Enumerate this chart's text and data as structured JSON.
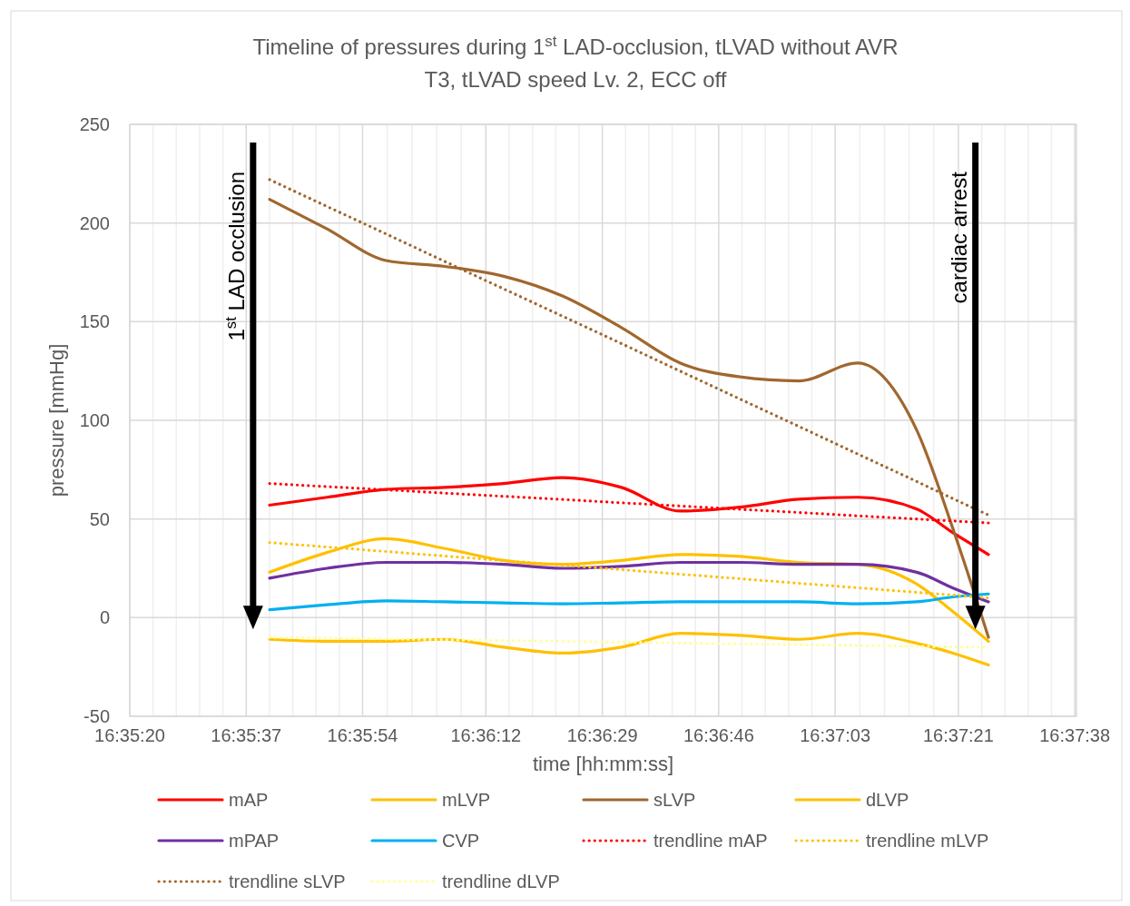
{
  "chart_data": {
    "type": "line",
    "title": "Timeline of pressures during 1$^{st}$ LAD-occlusion, tLVAD without AVR",
    "subtitle": "T3, tLVAD speed Lv. 2, ECC off",
    "xlabel": "time [hh:mm:ss]",
    "ylabel": "pressure [mmHg]",
    "x": [
      16.59456,
      16.59689,
      16.59928,
      16.60167,
      16.60406,
      16.60644,
      16.60883,
      16.61122,
      16.61364,
      16.61603,
      16.61842,
      16.62081,
      16.62228,
      16.62372
    ],
    "series": [
      {
        "name": "mAP",
        "color": "#ff0000",
        "values": [
          57,
          61,
          65,
          66,
          68,
          71,
          66,
          54,
          56,
          60,
          61,
          55,
          43,
          32
        ]
      },
      {
        "name": "mLVP",
        "color": "#ffc000",
        "values": [
          23,
          33,
          40,
          35,
          29,
          27,
          29,
          32,
          31,
          28,
          27,
          17,
          3,
          -12
        ]
      },
      {
        "name": "sLVP",
        "color": "#a0672e",
        "values": [
          212,
          197,
          181,
          178,
          173,
          163,
          147,
          129,
          122,
          120,
          129,
          95,
          45,
          -10
        ]
      },
      {
        "name": "dLVP",
        "color": "#ffc000",
        "values": [
          -11,
          -12,
          -12,
          -11,
          -15,
          -18,
          -15,
          -8,
          -9,
          -11,
          -8,
          -13,
          -18,
          -24
        ]
      },
      {
        "name": "mPAP",
        "color": "#7030a0",
        "values": [
          20,
          25,
          28,
          28,
          27,
          25,
          26,
          28,
          28,
          27,
          27,
          23,
          15,
          8
        ]
      },
      {
        "name": "CVP",
        "color": "#00b0f0",
        "values": [
          4,
          6.5,
          8.5,
          8,
          7.5,
          7,
          7.5,
          8,
          8,
          8,
          7,
          8,
          10.5,
          12
        ]
      },
      {
        "name": "trendline mAP",
        "type": "line",
        "color": "#ff0000",
        "line_style": "dotted",
        "values": [
          68,
          66.4,
          64.8,
          63.1,
          61.5,
          59.9,
          58.2,
          56.6,
          54.9,
          53.3,
          51.6,
          50,
          49,
          48
        ]
      },
      {
        "name": "trendline mLVP",
        "type": "line",
        "color": "#ffc000",
        "line_style": "dotted",
        "values": [
          38,
          35.8,
          33.5,
          31.2,
          28.9,
          26.6,
          24.3,
          22,
          19.7,
          17.4,
          15.1,
          12.8,
          11.4,
          10
        ]
      },
      {
        "name": "trendline sLVP",
        "type": "line",
        "color": "#a0672e",
        "line_style": "dotted",
        "values": [
          222,
          208.4,
          194.5,
          180.5,
          166.6,
          152.8,
          138.9,
          124.9,
          110.8,
          96.9,
          82.9,
          69,
          60.3,
          52
        ]
      },
      {
        "name": "trendline dLVP",
        "type": "line",
        "color": "#ffff99",
        "line_style": "dotted",
        "values": [
          -10,
          -10.4,
          -10.8,
          -11.2,
          -11.6,
          -12,
          -12.4,
          -12.9,
          -13.3,
          -13.7,
          -14.1,
          -14.5,
          -14.8,
          -15
        ]
      }
    ],
    "ref_lines": [
      {
        "axis": "x",
        "value": 16.59389,
        "label": "1$^{st}$ LAD occlusion",
        "color": "#000000"
      },
      {
        "axis": "x",
        "value": 16.62319,
        "label": "cardiac arrest",
        "color": "#000000"
      }
    ],
    "xlim": [
      16.588889,
      16.627289
    ],
    "xticks": [
      {
        "value": 16.588889,
        "label": "16:35:20"
      },
      {
        "value": 16.593611,
        "label": "16:35:37"
      },
      {
        "value": 16.598333,
        "label": "16:35:54"
      },
      {
        "value": 16.603333,
        "label": "16:36:12"
      },
      {
        "value": 16.608056,
        "label": "16:36:29"
      },
      {
        "value": 16.612778,
        "label": "16:36:46"
      },
      {
        "value": 16.6175,
        "label": "16:37:03"
      },
      {
        "value": 16.6225,
        "label": "16:37:21"
      },
      {
        "value": 16.627222,
        "label": "16:37:38"
      }
    ],
    "ylim": [
      -50,
      250
    ],
    "yticks": [
      -50,
      0,
      50,
      100,
      150,
      200,
      250
    ],
    "grid": true,
    "legend": "bottom",
    "line_style": "solid",
    "marker": "none"
  }
}
